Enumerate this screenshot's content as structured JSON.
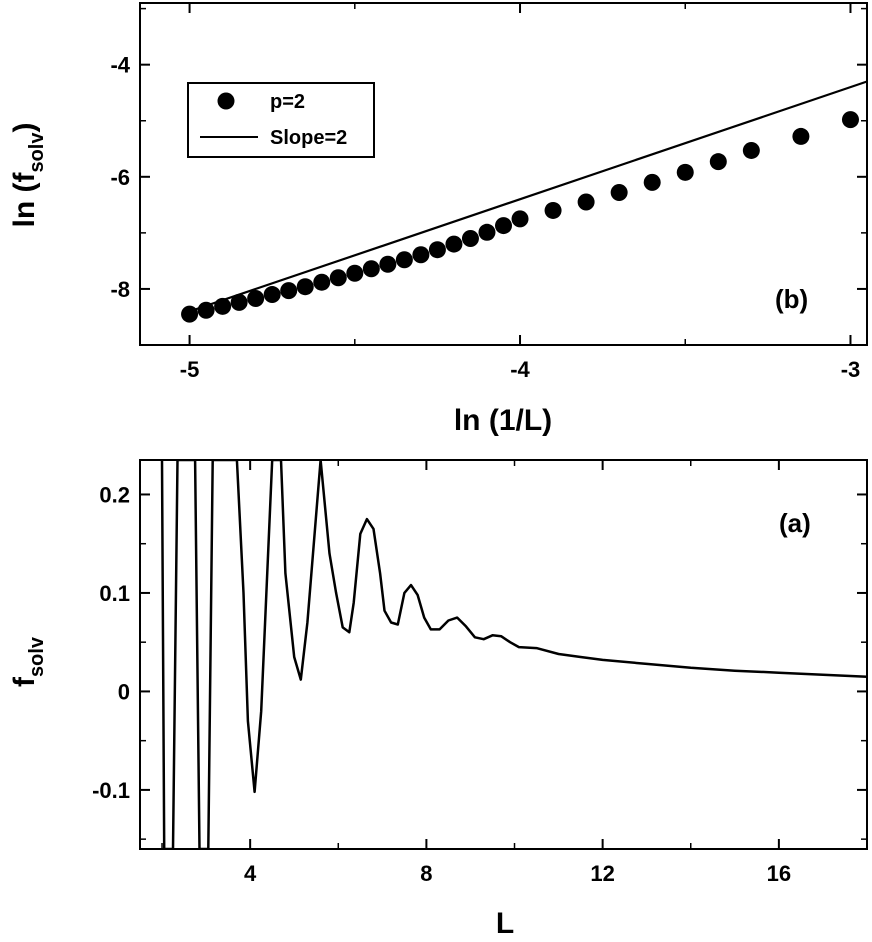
{
  "chart_data": [
    {
      "type": "scatter",
      "panel_label": "(b)",
      "xlabel": "ln (1/L)",
      "ylabel_main": "ln (f",
      "ylabel_sub": "solv",
      "ylabel_close": ")",
      "xlim": [
        -5.15,
        -2.95
      ],
      "ylim": [
        -9.0,
        -2.9
      ],
      "xticks": [
        -5,
        -4,
        -3
      ],
      "xtick_labels": [
        "-5",
        "-4",
        "-3"
      ],
      "yticks": [
        -8,
        -6,
        -4
      ],
      "ytick_labels": [
        "-8",
        "-6",
        "-4"
      ],
      "legend_position": "top-left",
      "series": [
        {
          "name": "p=2",
          "style": "markers",
          "x": [
            -5.0,
            -4.95,
            -4.9,
            -4.85,
            -4.8,
            -4.75,
            -4.7,
            -4.65,
            -4.6,
            -4.55,
            -4.5,
            -4.45,
            -4.4,
            -4.35,
            -4.3,
            -4.25,
            -4.2,
            -4.15,
            -4.1,
            -4.05,
            -4.0,
            -3.9,
            -3.8,
            -3.7,
            -3.6,
            -3.5,
            -3.4,
            -3.3,
            -3.15,
            -3.0
          ],
          "y": [
            -8.45,
            -8.38,
            -8.31,
            -8.24,
            -8.17,
            -8.1,
            -8.03,
            -7.96,
            -7.88,
            -7.8,
            -7.72,
            -7.64,
            -7.56,
            -7.48,
            -7.39,
            -7.3,
            -7.2,
            -7.1,
            -6.99,
            -6.87,
            -6.75,
            -6.6,
            -6.45,
            -6.28,
            -6.1,
            -5.92,
            -5.73,
            -5.53,
            -5.28,
            -4.98
          ]
        },
        {
          "name": "Slope=2",
          "style": "line",
          "x": [
            -5.0,
            -2.95
          ],
          "y": [
            -8.4,
            -4.3
          ]
        }
      ]
    },
    {
      "type": "line",
      "panel_label": "(a)",
      "xlabel": "L",
      "ylabel_main": "f",
      "ylabel_sub": "solv",
      "xlim": [
        1.5,
        18.0
      ],
      "ylim": [
        -0.16,
        0.235
      ],
      "xticks": [
        4,
        8,
        12,
        16
      ],
      "xtick_labels": [
        "4",
        "8",
        "12",
        "16"
      ],
      "yticks": [
        -0.1,
        0,
        0.1,
        0.2
      ],
      "ytick_labels": [
        "-0.1",
        "0",
        "0.1",
        "0.2"
      ],
      "series": [
        {
          "name": "f_solv",
          "x": [
            2.0,
            2.05,
            2.25,
            2.35,
            2.75,
            2.85,
            3.05,
            3.15,
            3.7,
            3.85,
            3.95,
            4.1,
            4.25,
            4.5,
            4.7,
            4.8,
            5.0,
            5.15,
            5.3,
            5.6,
            5.8,
            5.95,
            6.1,
            6.25,
            6.35,
            6.5,
            6.65,
            6.8,
            6.95,
            7.05,
            7.2,
            7.35,
            7.5,
            7.65,
            7.8,
            7.95,
            8.1,
            8.3,
            8.5,
            8.7,
            8.9,
            9.1,
            9.3,
            9.5,
            9.7,
            9.9,
            10.1,
            10.5,
            11.0,
            11.5,
            12.0,
            13.0,
            14.0,
            15.0,
            16.0,
            17.0,
            18.0
          ],
          "y": [
            0.235,
            -0.16,
            -0.16,
            0.235,
            0.235,
            -0.16,
            -0.16,
            0.235,
            0.235,
            0.1,
            -0.03,
            -0.102,
            -0.02,
            0.235,
            0.235,
            0.12,
            0.035,
            0.012,
            0.07,
            0.235,
            0.14,
            0.1,
            0.065,
            0.06,
            0.09,
            0.16,
            0.175,
            0.165,
            0.12,
            0.082,
            0.07,
            0.068,
            0.1,
            0.108,
            0.098,
            0.075,
            0.063,
            0.063,
            0.072,
            0.075,
            0.066,
            0.055,
            0.053,
            0.057,
            0.056,
            0.05,
            0.045,
            0.044,
            0.038,
            0.035,
            0.032,
            0.028,
            0.024,
            0.021,
            0.019,
            0.017,
            0.015
          ]
        }
      ]
    }
  ],
  "legend": {
    "items": [
      {
        "label": "p=2"
      },
      {
        "label": "Slope=2"
      }
    ]
  },
  "colors": {
    "ink": "#000000",
    "background": "#ffffff"
  }
}
